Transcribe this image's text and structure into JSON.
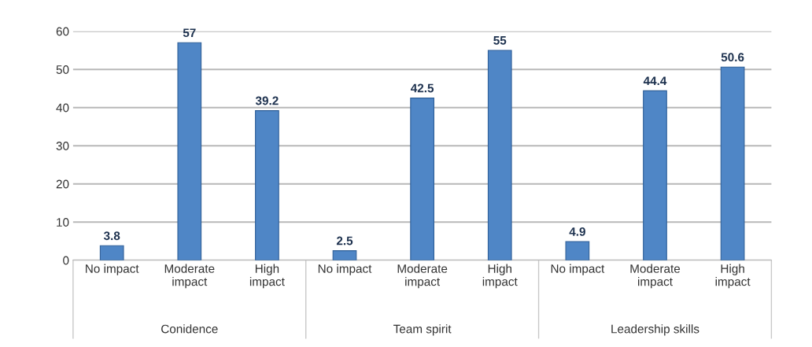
{
  "chart_data": {
    "type": "bar",
    "categories": [
      "No impact",
      "Moderate\nimpact",
      "High\nimpact",
      "No impact",
      "Moderate\nimpact",
      "High\nimpact",
      "No impact",
      "Moderate\nimpact",
      "High\nimpact"
    ],
    "values": [
      3.8,
      57,
      39.2,
      2.5,
      42.5,
      55,
      4.9,
      44.4,
      50.6
    ],
    "color": "#4f86c6",
    "ylim": [
      0,
      60
    ],
    "yticks": [
      0,
      10,
      20,
      30,
      40,
      50,
      60
    ],
    "grid": "y",
    "data_labels": true,
    "annotations": [
      "Conidence",
      "Team spirit",
      "Leadership skills"
    ]
  }
}
